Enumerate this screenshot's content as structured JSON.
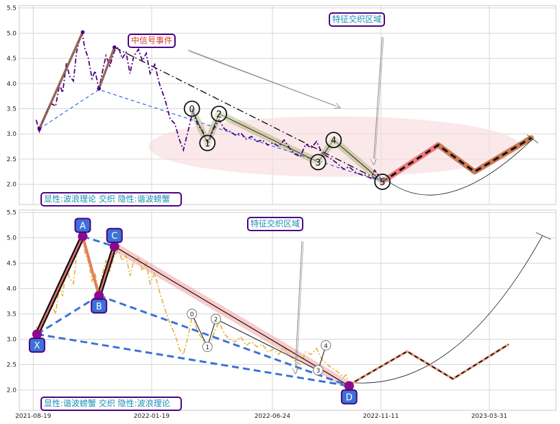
{
  "colors": {
    "grid": "#d6d6d6",
    "plot_border": "#c8c8c8",
    "wave_price": "#4b0082",
    "crab_price": "#e6b030",
    "box_border": "#4b0082",
    "box_text_teal": "#1a8fb5",
    "box_text_red": "#d63a2a",
    "ellipse_fill": "#f8d9dc",
    "projection_hot": "#f07a7a",
    "projection_warm": "#cc7a55",
    "crab_line": "#3a72d8",
    "label_fill": "#3a72d8",
    "point_fill": "#8b0a8b"
  },
  "chart_data": [
    {
      "type": "line",
      "panel": "top",
      "title": "",
      "xlabel": "",
      "ylabel": "",
      "ylim": [
        1.6,
        5.55
      ],
      "xlim": [
        "2021-08-01",
        "2023-06-25"
      ],
      "yticks": [
        "2.0",
        "2.5",
        "3.0",
        "3.5",
        "4.0",
        "4.5",
        "5.0",
        "5.5"
      ],
      "grid": true,
      "annotations": {
        "signal_event": "中信号事件",
        "feature_zone": "特征交织区域",
        "mode_box": "显性:波浪理论 交织 隐性:谐波螃蟹"
      },
      "price_series": [
        [
          "2021-08-23",
          3.28
        ],
        [
          "2021-08-27",
          3.05
        ],
        [
          "2021-09-01",
          3.28
        ],
        [
          "2021-09-07",
          3.5
        ],
        [
          "2021-09-12",
          3.6
        ],
        [
          "2021-09-17",
          3.55
        ],
        [
          "2021-09-22",
          3.98
        ],
        [
          "2021-09-26",
          3.82
        ],
        [
          "2021-10-01",
          4.4
        ],
        [
          "2021-10-05",
          4.15
        ],
        [
          "2021-10-10",
          4.05
        ],
        [
          "2021-10-14",
          4.62
        ],
        [
          "2021-10-18",
          4.88
        ],
        [
          "2021-10-21",
          5.02
        ],
        [
          "2021-10-25",
          4.68
        ],
        [
          "2021-10-29",
          4.52
        ],
        [
          "2021-11-03",
          4.1
        ],
        [
          "2021-11-07",
          4.25
        ],
        [
          "2021-11-12",
          3.88
        ],
        [
          "2021-11-16",
          4.2
        ],
        [
          "2021-11-21",
          4.55
        ],
        [
          "2021-11-26",
          4.35
        ],
        [
          "2021-12-02",
          4.65
        ],
        [
          "2021-12-07",
          4.72
        ],
        [
          "2021-12-12",
          4.5
        ],
        [
          "2021-12-17",
          4.62
        ],
        [
          "2021-12-22",
          4.2
        ],
        [
          "2021-12-27",
          4.55
        ],
        [
          "2022-01-02",
          4.68
        ],
        [
          "2022-01-07",
          4.45
        ],
        [
          "2022-01-12",
          4.6
        ],
        [
          "2022-01-17",
          4.2
        ],
        [
          "2022-01-23",
          4.38
        ],
        [
          "2022-01-29",
          4.0
        ],
        [
          "2022-02-05",
          3.7
        ],
        [
          "2022-02-12",
          3.3
        ],
        [
          "2022-02-18",
          3.2
        ],
        [
          "2022-02-24",
          2.88
        ],
        [
          "2022-03-01",
          2.68
        ],
        [
          "2022-03-07",
          3.05
        ],
        [
          "2022-03-13",
          3.45
        ],
        [
          "2022-03-19",
          3.2
        ],
        [
          "2022-03-26",
          3.05
        ],
        [
          "2022-04-02",
          2.8
        ],
        [
          "2022-04-09",
          3.1
        ],
        [
          "2022-04-16",
          3.28
        ],
        [
          "2022-04-23",
          3.1
        ],
        [
          "2022-04-30",
          3.05
        ],
        [
          "2022-05-07",
          2.98
        ],
        [
          "2022-05-14",
          3.02
        ],
        [
          "2022-05-21",
          2.9
        ],
        [
          "2022-05-28",
          2.95
        ],
        [
          "2022-06-04",
          2.85
        ],
        [
          "2022-06-11",
          2.88
        ],
        [
          "2022-06-18",
          2.78
        ],
        [
          "2022-06-25",
          2.82
        ],
        [
          "2022-07-02",
          2.75
        ],
        [
          "2022-07-09",
          2.88
        ],
        [
          "2022-07-16",
          2.72
        ],
        [
          "2022-07-23",
          2.6
        ],
        [
          "2022-07-30",
          2.55
        ],
        [
          "2022-08-06",
          2.8
        ],
        [
          "2022-08-13",
          2.72
        ],
        [
          "2022-08-20",
          2.85
        ],
        [
          "2022-08-27",
          2.62
        ],
        [
          "2022-09-03",
          2.55
        ],
        [
          "2022-09-10",
          2.48
        ],
        [
          "2022-09-17",
          2.4
        ],
        [
          "2022-09-24",
          2.3
        ],
        [
          "2022-10-01",
          2.35
        ],
        [
          "2022-10-08",
          2.25
        ],
        [
          "2022-10-15",
          2.2
        ],
        [
          "2022-10-22",
          2.18
        ],
        [
          "2022-10-29",
          2.12
        ],
        [
          "2022-11-03",
          2.28
        ],
        [
          "2022-11-08",
          2.18
        ],
        [
          "2022-11-13",
          2.05
        ]
      ],
      "wave_points": [
        {
          "label": "0",
          "date": "2022-03-12",
          "value": 3.5
        },
        {
          "label": "1",
          "date": "2022-04-01",
          "value": 2.82
        },
        {
          "label": "2",
          "date": "2022-04-16",
          "value": 3.4
        },
        {
          "label": "3",
          "date": "2022-08-22",
          "value": 2.44
        },
        {
          "label": "4",
          "date": "2022-09-11",
          "value": 2.88
        },
        {
          "label": "5",
          "date": "2022-11-13",
          "value": 2.05
        }
      ],
      "zone_ellipse": {
        "center": [
          "2022-09-12",
          2.75
        ],
        "x_halfwidth_days": 240,
        "y_halfheight": 0.6
      },
      "projection_solid": [
        [
          "2022-11-13",
          2.05
        ],
        [
          "2023-01-24",
          2.78
        ]
      ],
      "projection_warm": [
        [
          "2023-01-24",
          2.78
        ],
        [
          "2023-03-12",
          2.25
        ],
        [
          "2023-05-24",
          2.92
        ]
      ],
      "projection_dashed": [
        [
          "2022-11-13",
          2.05
        ],
        [
          "2023-01-24",
          2.78
        ],
        [
          "2023-03-12",
          2.25
        ],
        [
          "2023-05-24",
          2.92
        ]
      ],
      "arc_curve": [
        [
          "2022-11-13",
          2.15
        ],
        [
          "2023-01-28",
          1.9
        ],
        [
          "2023-05-26",
          2.9
        ]
      ],
      "dash_dot_trend": [
        [
          "2021-12-02",
          4.72
        ],
        [
          "2022-11-13",
          2.05
        ]
      ],
      "blue_dashed_line": [
        [
          "2021-08-27",
          3.1
        ],
        [
          "2021-11-12",
          3.88
        ],
        [
          "2022-11-13",
          2.05
        ]
      ],
      "brown_legs": [
        [
          [
            "2021-08-27",
            3.1
          ],
          [
            "2021-10-22",
            5.02
          ]
        ],
        [
          [
            "2021-11-12",
            3.9
          ],
          [
            "2021-12-02",
            4.72
          ]
        ]
      ],
      "purple_points": [
        [
          "2021-08-27",
          3.1
        ],
        [
          "2021-10-22",
          5.02
        ],
        [
          "2021-11-12",
          3.9
        ],
        [
          "2021-12-02",
          4.72
        ]
      ]
    },
    {
      "type": "line",
      "panel": "bottom",
      "title": "",
      "xlabel": "",
      "ylabel": "",
      "ylim": [
        1.6,
        5.55
      ],
      "xlim": [
        "2021-08-01",
        "2023-06-25"
      ],
      "xticks": [
        "2021-08-19",
        "2022-01-19",
        "2022-06-24",
        "2022-11-11",
        "2023-03-31"
      ],
      "yticks": [
        "2.0",
        "2.5",
        "3.0",
        "3.5",
        "4.0",
        "4.5",
        "5.0",
        "5.5"
      ],
      "grid": true,
      "annotations": {
        "feature_zone": "特征交织区域",
        "mode_box": "显性:谐波螃蟹 交织 隐性:波浪理论"
      },
      "price_series": [
        [
          "2021-08-23",
          3.25
        ],
        [
          "2021-08-27",
          3.05
        ],
        [
          "2021-09-01",
          3.3
        ],
        [
          "2021-09-07",
          3.55
        ],
        [
          "2021-09-12",
          3.7
        ],
        [
          "2021-09-17",
          3.5
        ],
        [
          "2021-09-22",
          4.05
        ],
        [
          "2021-09-26",
          3.85
        ],
        [
          "2021-10-01",
          4.45
        ],
        [
          "2021-10-05",
          4.2
        ],
        [
          "2021-10-10",
          4.1
        ],
        [
          "2021-10-14",
          4.65
        ],
        [
          "2021-10-18",
          4.9
        ],
        [
          "2021-10-21",
          5.02
        ],
        [
          "2021-10-25",
          4.7
        ],
        [
          "2021-10-29",
          4.55
        ],
        [
          "2021-11-03",
          4.15
        ],
        [
          "2021-11-07",
          4.3
        ],
        [
          "2021-11-12",
          3.9
        ],
        [
          "2021-11-16",
          4.25
        ],
        [
          "2021-11-21",
          4.55
        ],
        [
          "2021-11-26",
          4.35
        ],
        [
          "2021-12-02",
          4.65
        ],
        [
          "2021-12-07",
          4.75
        ],
        [
          "2021-12-12",
          4.55
        ],
        [
          "2021-12-17",
          4.65
        ],
        [
          "2021-12-22",
          4.25
        ],
        [
          "2021-12-27",
          4.55
        ],
        [
          "2022-01-02",
          4.6
        ],
        [
          "2022-01-07",
          4.35
        ],
        [
          "2022-01-12",
          4.5
        ],
        [
          "2022-01-17",
          4.1
        ],
        [
          "2022-01-23",
          4.3
        ],
        [
          "2022-01-29",
          3.95
        ],
        [
          "2022-02-05",
          3.6
        ],
        [
          "2022-02-12",
          3.3
        ],
        [
          "2022-02-18",
          3.1
        ],
        [
          "2022-02-24",
          2.8
        ],
        [
          "2022-03-01",
          2.7
        ],
        [
          "2022-03-07",
          3.05
        ],
        [
          "2022-03-13",
          3.5
        ],
        [
          "2022-03-19",
          3.15
        ],
        [
          "2022-03-26",
          3.0
        ],
        [
          "2022-04-02",
          2.8
        ],
        [
          "2022-04-09",
          3.1
        ],
        [
          "2022-04-16",
          3.35
        ],
        [
          "2022-04-23",
          3.1
        ],
        [
          "2022-04-30",
          3.0
        ],
        [
          "2022-05-07",
          2.95
        ],
        [
          "2022-05-14",
          3.05
        ],
        [
          "2022-05-21",
          2.88
        ],
        [
          "2022-05-28",
          2.95
        ],
        [
          "2022-06-04",
          2.85
        ],
        [
          "2022-06-11",
          2.9
        ],
        [
          "2022-06-18",
          2.75
        ],
        [
          "2022-06-25",
          2.8
        ],
        [
          "2022-07-02",
          2.7
        ],
        [
          "2022-07-09",
          2.85
        ],
        [
          "2022-07-16",
          2.68
        ],
        [
          "2022-07-23",
          2.58
        ],
        [
          "2022-07-30",
          2.5
        ],
        [
          "2022-08-06",
          2.75
        ],
        [
          "2022-08-13",
          2.7
        ],
        [
          "2022-08-20",
          2.82
        ],
        [
          "2022-08-27",
          2.6
        ],
        [
          "2022-09-03",
          2.5
        ],
        [
          "2022-09-10",
          2.42
        ],
        [
          "2022-09-17",
          2.35
        ],
        [
          "2022-09-24",
          2.25
        ],
        [
          "2022-09-27",
          2.3
        ],
        [
          "2022-10-01",
          2.08
        ]
      ],
      "crab_points": [
        {
          "label": "X",
          "date": "2021-08-24",
          "value": 3.1
        },
        {
          "label": "A",
          "date": "2021-10-22",
          "value": 5.03
        },
        {
          "label": "B",
          "date": "2021-11-12",
          "value": 3.86
        },
        {
          "label": "C",
          "date": "2021-12-02",
          "value": 4.83
        },
        {
          "label": "D",
          "date": "2022-10-01",
          "value": 2.08
        }
      ],
      "small_wave_points": [
        {
          "label": "0",
          "date": "2022-03-12",
          "value": 3.5
        },
        {
          "label": "1",
          "date": "2022-04-01",
          "value": 2.85
        },
        {
          "label": "2",
          "date": "2022-04-12",
          "value": 3.4
        },
        {
          "label": "3",
          "date": "2022-08-22",
          "value": 2.39
        },
        {
          "label": "4",
          "date": "2022-09-01",
          "value": 2.88
        }
      ],
      "projection_dashed": [
        [
          "2022-10-01",
          2.1
        ],
        [
          "2022-12-15",
          2.76
        ],
        [
          "2023-02-12",
          2.22
        ],
        [
          "2023-04-25",
          2.9
        ]
      ],
      "arc_curve": [
        [
          "2022-10-01",
          2.15
        ],
        [
          "2023-02-15",
          2.22
        ],
        [
          "2023-06-08",
          5.05
        ]
      ]
    }
  ]
}
